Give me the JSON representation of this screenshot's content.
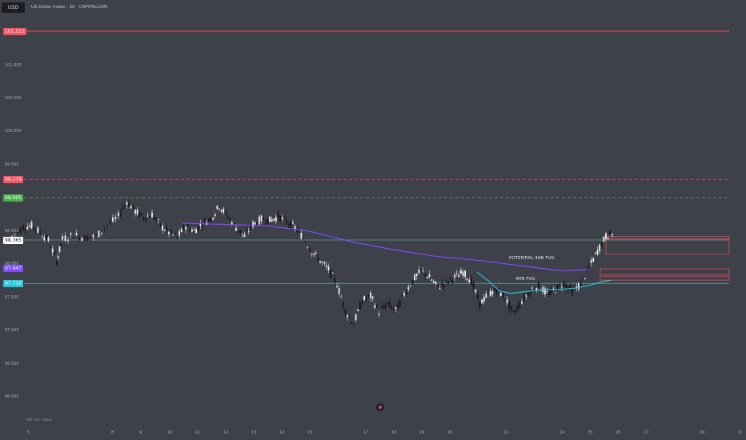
{
  "header": {
    "symbol_button": "USD",
    "title": "US Dollar Index · 30 · CAPITALCOM"
  },
  "colors": {
    "background": "#3e404a",
    "resistance": "#ff4d5a",
    "support_green": "#4caf50",
    "ma_purple": "#7c4dff",
    "ma_teal": "#26c6da",
    "hline": "#5fa89a",
    "fvg_box": "#e04b55"
  },
  "chart_data": {
    "type": "candlestick",
    "title": "US Dollar Index · 30 · CAPITALCOM",
    "y_axis": {
      "min": 95.6,
      "max": 101.8,
      "ticks": [
        96.0,
        96.5,
        97.0,
        97.5,
        98.0,
        98.5,
        99.0,
        99.5,
        100.0,
        100.5,
        101.0
      ],
      "tick_labels": [
        "96.000",
        "96.500",
        "97.000",
        "97.500",
        "98.000",
        "98.500",
        "99.000",
        "99.500",
        "100.000",
        "100.500",
        "101.000"
      ]
    },
    "x_axis": {
      "min": 4.4,
      "max": 30.5,
      "ticks": [
        5,
        8,
        9,
        10,
        11,
        12,
        13,
        14,
        15,
        17,
        18,
        19,
        20,
        22,
        24,
        25,
        26,
        27,
        29
      ],
      "tick_labels": [
        "5",
        "8",
        "9",
        "10",
        "11",
        "12",
        "13",
        "14",
        "15",
        "17",
        "18",
        "19",
        "20",
        "22",
        "24",
        "25",
        "26",
        "27",
        "29"
      ]
    },
    "levels": [
      {
        "label": "101.513",
        "value": 101.513,
        "style": "solid",
        "color": "#ff4d5a"
      },
      {
        "label": "99.279",
        "value": 99.279,
        "style": "dashed",
        "color": "#ff4d5a"
      },
      {
        "label": "99.005",
        "value": 99.005,
        "style": "dashed",
        "color": "#4caf50"
      },
      {
        "label": "98.365",
        "value": 98.365,
        "style": "solid",
        "color": "#5fa89a"
      },
      {
        "label": "97.710",
        "value": 97.71,
        "style": "solid",
        "color": "#5fa89a"
      }
    ],
    "price_badges": [
      {
        "label": "98.365",
        "value": 98.365,
        "color": "#ffffff",
        "text_color": "#222222"
      },
      {
        "label": "97.947",
        "value": 97.947,
        "color": "#7c4dff",
        "text_color": "#ffffff"
      },
      {
        "label": "97.710",
        "value": 97.71,
        "color": "#26c6da",
        "text_color": "#ffffff"
      }
    ],
    "price_path": [
      [
        4.4,
        98.42
      ],
      [
        4.8,
        98.56
      ],
      [
        5.1,
        98.58
      ],
      [
        5.4,
        98.48
      ],
      [
        5.7,
        98.36
      ],
      [
        6.0,
        98.05
      ],
      [
        6.2,
        98.38
      ],
      [
        6.6,
        98.44
      ],
      [
        7.0,
        98.4
      ],
      [
        7.4,
        98.42
      ],
      [
        7.8,
        98.58
      ],
      [
        8.2,
        98.72
      ],
      [
        8.5,
        98.95
      ],
      [
        8.8,
        98.8
      ],
      [
        9.1,
        98.7
      ],
      [
        9.4,
        98.75
      ],
      [
        9.7,
        98.58
      ],
      [
        10.0,
        98.48
      ],
      [
        10.3,
        98.4
      ],
      [
        10.6,
        98.58
      ],
      [
        10.9,
        98.5
      ],
      [
        11.2,
        98.62
      ],
      [
        11.5,
        98.68
      ],
      [
        11.8,
        98.88
      ],
      [
        12.1,
        98.72
      ],
      [
        12.4,
        98.55
      ],
      [
        12.7,
        98.42
      ],
      [
        13.0,
        98.6
      ],
      [
        13.3,
        98.68
      ],
      [
        13.6,
        98.66
      ],
      [
        13.9,
        98.72
      ],
      [
        14.2,
        98.64
      ],
      [
        14.5,
        98.55
      ],
      [
        14.8,
        98.4
      ],
      [
        15.1,
        98.2
      ],
      [
        15.4,
        98.05
      ],
      [
        15.7,
        97.92
      ],
      [
        16.0,
        97.7
      ],
      [
        16.3,
        97.3
      ],
      [
        16.6,
        97.1
      ],
      [
        16.9,
        97.45
      ],
      [
        17.2,
        97.52
      ],
      [
        17.5,
        97.28
      ],
      [
        17.8,
        97.4
      ],
      [
        18.1,
        97.3
      ],
      [
        18.4,
        97.55
      ],
      [
        18.7,
        97.75
      ],
      [
        19.0,
        97.9
      ],
      [
        19.3,
        97.8
      ],
      [
        19.6,
        97.65
      ],
      [
        19.9,
        97.72
      ],
      [
        20.2,
        97.8
      ],
      [
        20.5,
        97.88
      ],
      [
        20.8,
        97.75
      ],
      [
        21.1,
        97.4
      ],
      [
        21.4,
        97.55
      ],
      [
        21.7,
        97.62
      ],
      [
        22.0,
        97.5
      ],
      [
        22.3,
        97.25
      ],
      [
        22.6,
        97.45
      ],
      [
        22.9,
        97.6
      ],
      [
        23.2,
        97.68
      ],
      [
        23.5,
        97.55
      ],
      [
        23.8,
        97.62
      ],
      [
        24.1,
        97.72
      ],
      [
        24.4,
        97.6
      ],
      [
        24.7,
        97.7
      ],
      [
        25.0,
        97.95
      ],
      [
        25.3,
        98.2
      ],
      [
        25.6,
        98.42
      ],
      [
        25.9,
        98.48
      ]
    ],
    "series": [
      {
        "name": "",
        "color": "#7c4dff",
        "points": [
          [
            10.5,
            98.62
          ],
          [
            12.0,
            98.6
          ],
          [
            13.5,
            98.58
          ],
          [
            15.0,
            98.5
          ],
          [
            16.5,
            98.34
          ],
          [
            18.0,
            98.22
          ],
          [
            19.5,
            98.12
          ],
          [
            21.0,
            98.06
          ],
          [
            22.5,
            97.98
          ],
          [
            24.0,
            97.9
          ],
          [
            25.0,
            97.92
          ]
        ]
      },
      {
        "name": "",
        "color": "#26c6da",
        "points": [
          [
            21.0,
            97.88
          ],
          [
            21.4,
            97.75
          ],
          [
            21.8,
            97.6
          ],
          [
            22.2,
            97.56
          ],
          [
            22.6,
            97.58
          ],
          [
            23.0,
            97.6
          ],
          [
            23.5,
            97.62
          ],
          [
            24.0,
            97.62
          ],
          [
            24.5,
            97.64
          ],
          [
            25.0,
            97.68
          ],
          [
            25.5,
            97.74
          ],
          [
            25.8,
            97.76
          ]
        ]
      }
    ],
    "zones": [
      {
        "label": "POTENTIAL 4HR FVG",
        "x_start": 25.6,
        "x_end": 37.5,
        "y_low": 98.15,
        "y_high": 98.38,
        "color": "#e04b55"
      },
      {
        "label": "",
        "x_start": 25.6,
        "x_end": 37.5,
        "y_low": 98.38,
        "y_high": 98.42,
        "color": "#e04b55"
      },
      {
        "label": "4HR FVG",
        "x_start": 25.4,
        "x_end": 36.2,
        "y_low": 97.84,
        "y_high": 97.93,
        "color": "#e04b55"
      },
      {
        "label": "",
        "x_start": 25.4,
        "x_end": 36.2,
        "y_low": 97.76,
        "y_high": 97.82,
        "color": "#e04b55"
      }
    ],
    "grid": false,
    "indicator_label": "RSI (14, close)"
  }
}
